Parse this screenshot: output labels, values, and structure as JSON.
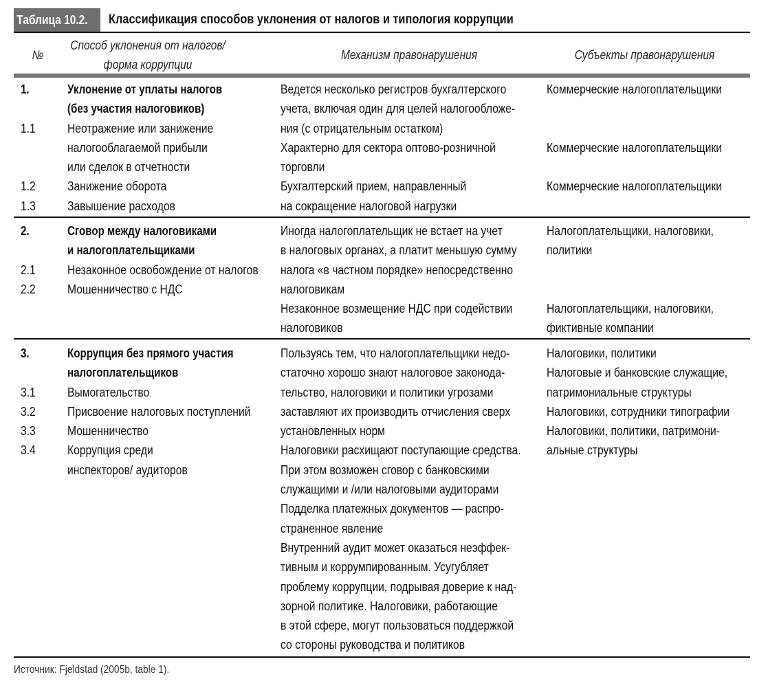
{
  "table": {
    "label": "Таблица 10.2.",
    "title": "Классификация способов уклонения от налогов и типология коррупции",
    "headers": {
      "number": "№",
      "method": [
        "Способ уклонения от налогов/",
        "форма коррупции"
      ],
      "mechanism": "Механизм правонарушения",
      "subjects": "Субъекты правонарушения"
    },
    "sections": [
      {
        "number": [
          "1.",
          "",
          "1.1",
          "",
          "",
          "1.2",
          "1.3"
        ],
        "method_bold_lines": 2,
        "method": [
          "Уклонение от уплаты налогов",
          "(без участия налоговиков)",
          "Неотражение или занижение",
          "налогооблагаемой прибыли",
          "или сделок в отчетности",
          "Занижение оборота",
          "Завышение расходов"
        ],
        "mechanism": [
          "Ведется несколько регистров бухгалтерского",
          "учета, включая один для целей налогообложе-",
          "ния (с отрицательным остатком)",
          "Характерно для сектора оптово-розничной",
          "торговли",
          "Бухгалтерский прием, направленный",
          "на сокращение налоговой нагрузки"
        ],
        "subjects": [
          "Коммерческие налогоплательщики",
          "",
          "",
          "Коммерческие налогоплательщики",
          "",
          "Коммерческие налогоплательщики",
          ""
        ]
      },
      {
        "number": [
          "2.",
          "",
          "2.1",
          "2.2"
        ],
        "method_bold_lines": 2,
        "method": [
          "Сговор между налоговиками",
          "и налогоплательщиками",
          "Незаконное освобождение от налогов",
          "Мошенничество с НДС"
        ],
        "mechanism": [
          "Иногда налогоплательщик не встает на учет",
          "в налоговых органах, а платит меньшую сумму",
          "налога «в частном порядке» непосредственно",
          "налоговикам",
          "Незаконное возмещение НДС при содействии",
          "налоговиков"
        ],
        "subjects": [
          "Налогоплательщики, налоговики,",
          "политики",
          "",
          "",
          "Налогоплательщики, налоговики,",
          "фиктивные компании"
        ]
      },
      {
        "number": [
          "3.",
          "",
          "3.1",
          "3.2",
          "3.3",
          "3.4"
        ],
        "method_bold_lines": 2,
        "method": [
          "Коррупция без прямого участия",
          "налогоплательщиков",
          "Вымогательство",
          "Присвоение налоговых поступлений",
          "Мошенничество",
          "Коррупция среди",
          "инспекторов/ аудиторов"
        ],
        "mechanism": [
          "Пользуясь тем, что налогоплательщики недо-",
          "статочно хорошо знают налоговое законода-",
          "тельство, налоговики и политики угрозами",
          "заставляют их производить отчисления сверх",
          "установленных норм",
          "Налоговики расхищают поступающие средства.",
          "При этом возможен сговор с банковскими",
          "служащими и /или налоговыми аудиторами",
          "Подделка платежных документов — распро-",
          "страненное явление",
          "Внутренний аудит может оказаться неэффек-",
          "тивным и коррумпированным. Усугубляет",
          "проблему коррупции, подрывая доверие к над-",
          "зорной политике. Налоговики, работающие",
          "в этой сфере, могут пользоваться поддержкой",
          "со стороны руководства и политиков"
        ],
        "subjects": [
          "Налоговики, политики",
          "Налоговые и банковские служащие,",
          "патримониальные структуры",
          "Налоговики, сотрудники типографии",
          "Налоговики, политики, патримони-",
          "альные структуры"
        ]
      }
    ],
    "source": "Источник: Fjeldstad (2005b, table 1)."
  }
}
